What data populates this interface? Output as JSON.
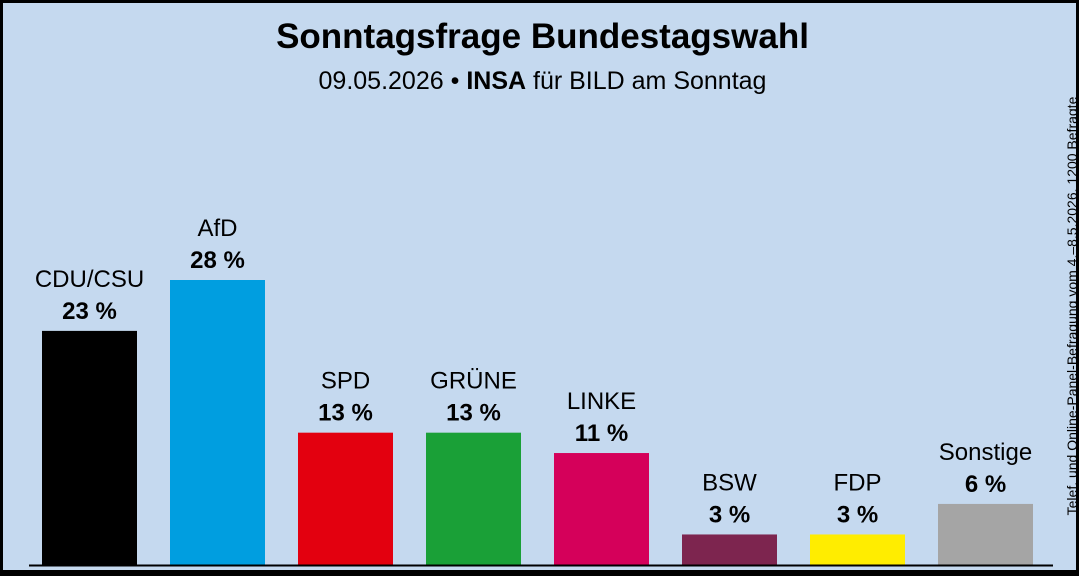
{
  "title": "Sonntagsfrage Bundestagswahl",
  "subtitle": {
    "date": "09.05.2026",
    "separator": "•",
    "institute": "INSA",
    "publisher": "für BILD am Sonntag"
  },
  "side_note": "Telef. und Online-Panel-Befragung vom 4.–8.5.2026, 1200 Befragte",
  "chart_data": {
    "type": "bar",
    "categories": [
      "CDU/CSU",
      "AfD",
      "SPD",
      "GRÜNE",
      "LINKE",
      "BSW",
      "FDP",
      "Sonstige"
    ],
    "values": [
      23,
      28,
      13,
      13,
      11,
      3,
      3,
      6
    ],
    "value_labels": [
      "23 %",
      "28 %",
      "13 %",
      "13 %",
      "11 %",
      "3 %",
      "3 %",
      "6 %"
    ],
    "colors": [
      "#000000",
      "#009ee0",
      "#e3000f",
      "#1aa037",
      "#d5005a",
      "#7d254f",
      "#ffed00",
      "#a5a5a5"
    ],
    "ylim": [
      0,
      28
    ],
    "grid": false,
    "legend": "none"
  }
}
